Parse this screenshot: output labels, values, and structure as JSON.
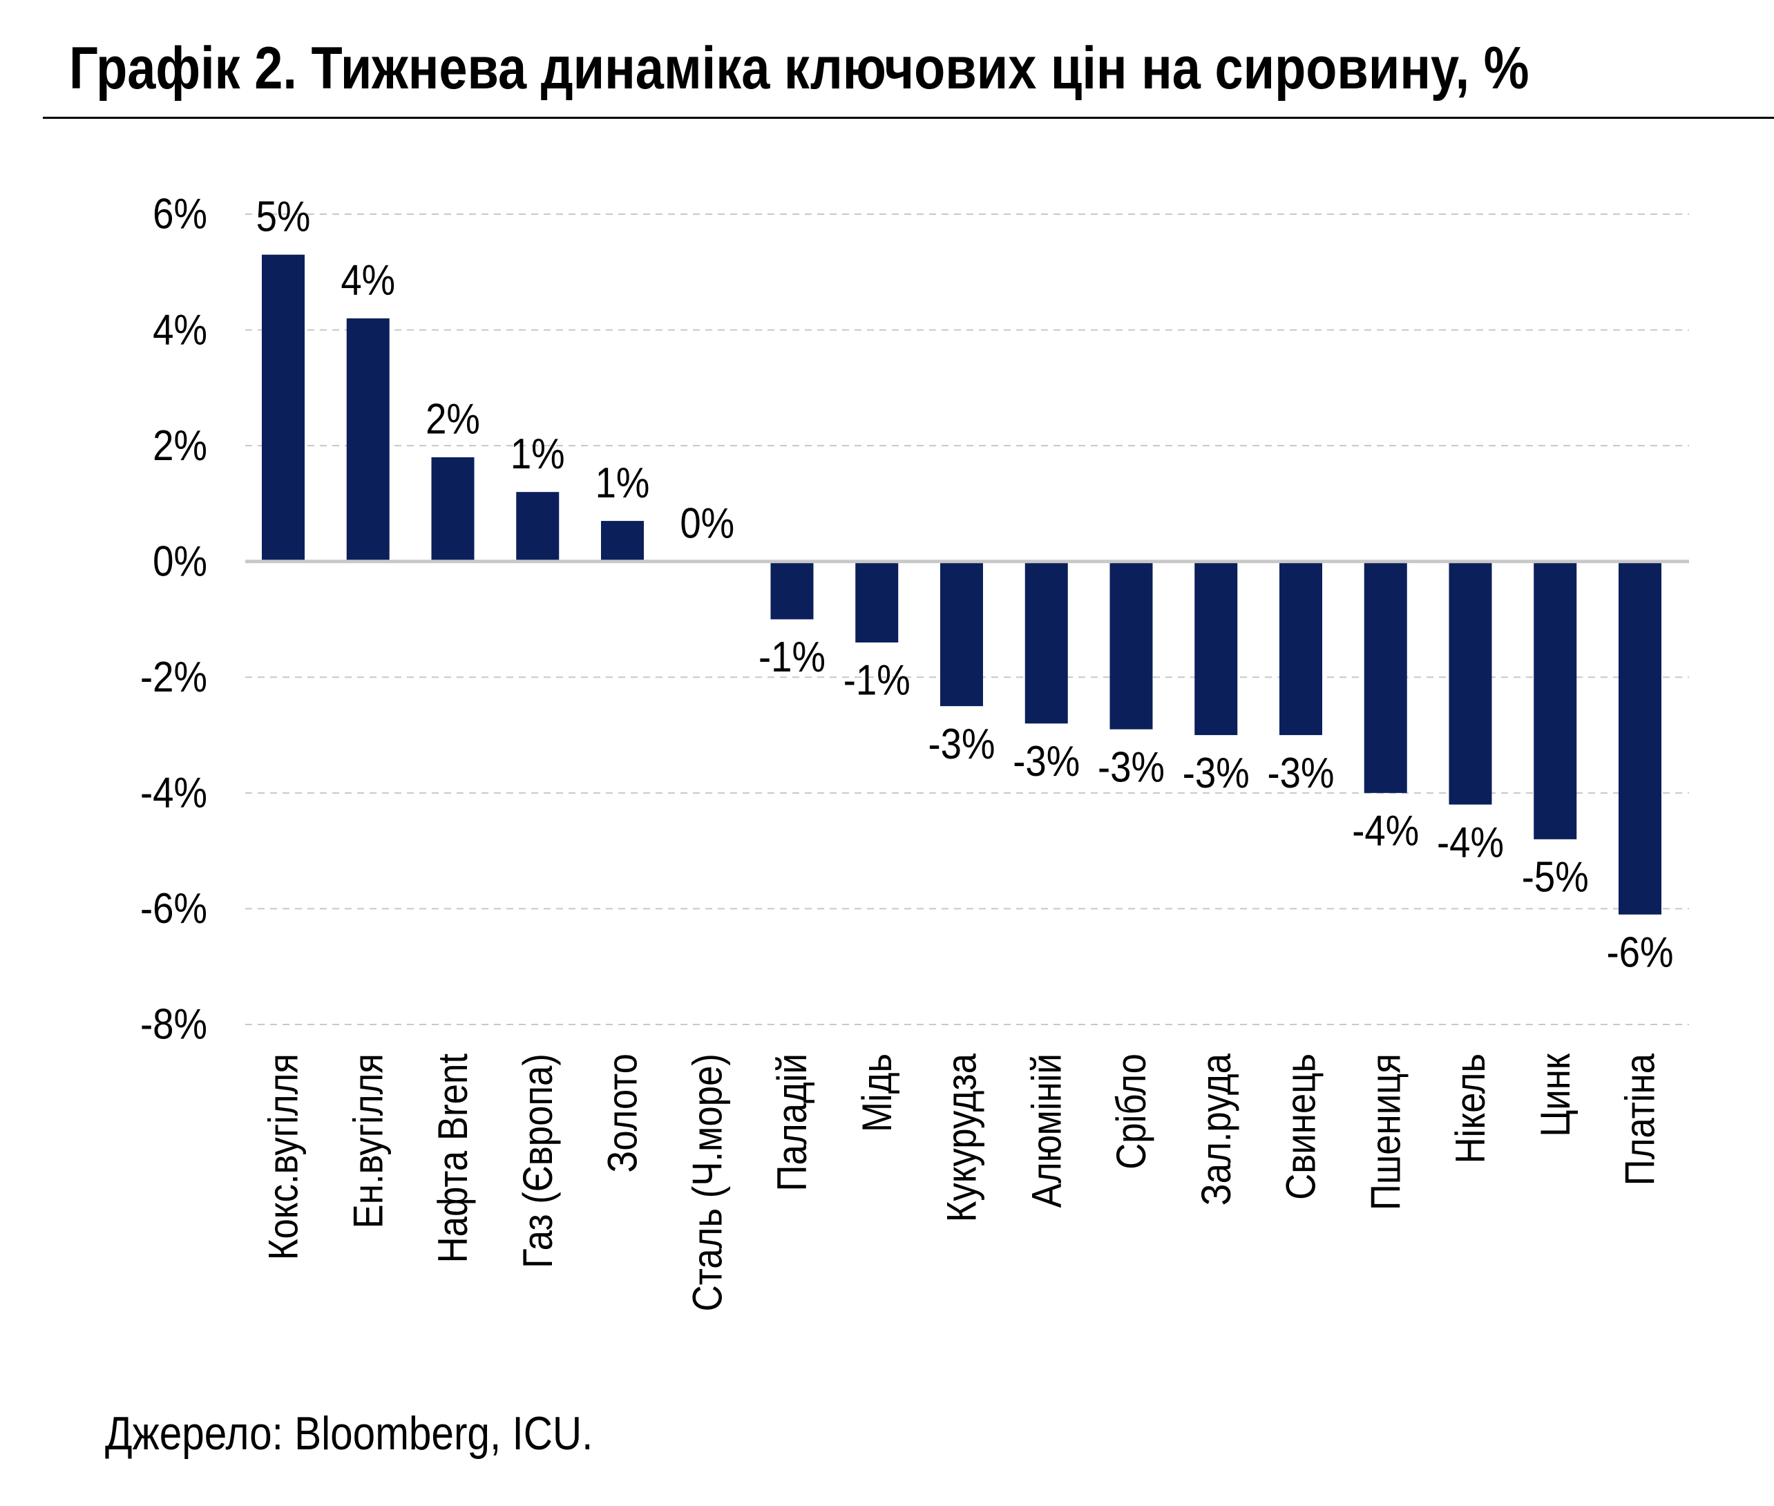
{
  "title": "Графік 2. Тижнева динаміка ключових цін на сировину, %",
  "source": "Джерело: Bloomberg, ICU.",
  "colors": {
    "bar": "#0b1f5b",
    "grid": "#c8c8c8",
    "zero_line": "#c8c8c8",
    "text": "#000000"
  },
  "chart_data": {
    "type": "bar",
    "title": "Графік 2. Тижнева динаміка ключових цін на сировину, %",
    "xlabel": "",
    "ylabel": "",
    "ylim": [
      -8,
      6
    ],
    "yticks": [
      6,
      4,
      2,
      0,
      -2,
      -4,
      -6,
      -8
    ],
    "ytick_labels": [
      "6%",
      "4%",
      "2%",
      "0%",
      "-2%",
      "-4%",
      "-6%",
      "-8%"
    ],
    "grid": true,
    "legend": "none",
    "categories": [
      "Кокс.вугілля",
      "Ен.вугілля",
      "Нафта Brent",
      "Газ (Європа)",
      "Золото",
      "Сталь (Ч.море)",
      "Паладій",
      "Мідь",
      "Кукурудза",
      "Алюміній",
      "Срібло",
      "Зал.руда",
      "Свинець",
      "Пшениця",
      "Нікель",
      "Цинк",
      "Платіна"
    ],
    "values": [
      5.3,
      4.2,
      1.8,
      1.2,
      0.7,
      0.0,
      -1.0,
      -1.4,
      -2.5,
      -2.8,
      -2.9,
      -3.0,
      -3.0,
      -4.0,
      -4.2,
      -4.8,
      -6.1
    ],
    "data_labels": [
      "5%",
      "4%",
      "2%",
      "1%",
      "1%",
      "0%",
      "-1%",
      "-1%",
      "-3%",
      "-3%",
      "-3%",
      "-3%",
      "-3%",
      "-4%",
      "-4%",
      "-5%",
      "-6%"
    ]
  }
}
